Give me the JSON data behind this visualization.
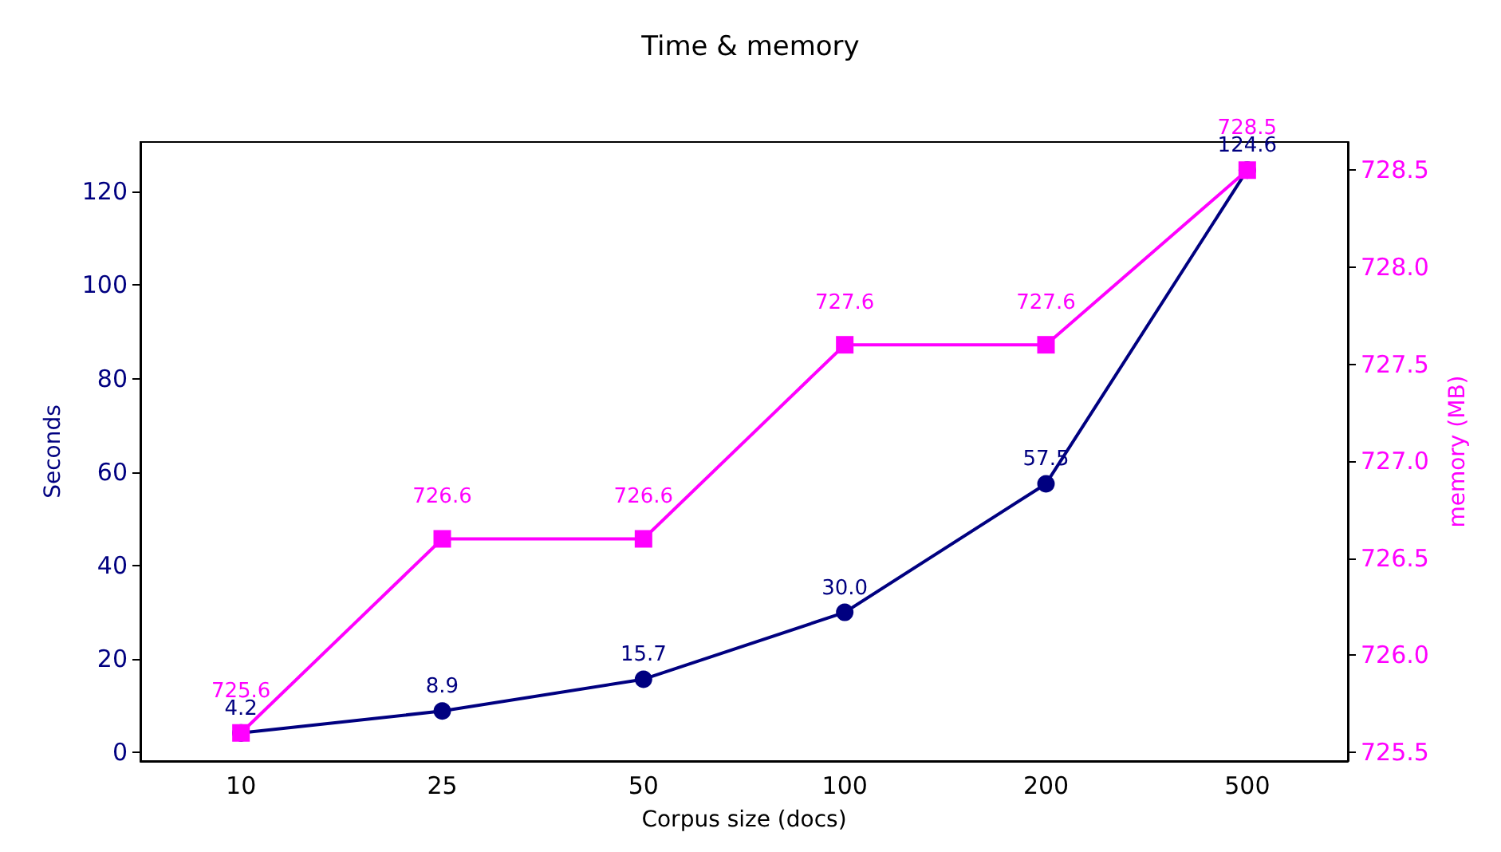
{
  "chart_data": {
    "type": "line",
    "title": "Time & memory",
    "xlabel": "Corpus size (docs)",
    "ylabel": "Seconds",
    "y2label": "memory (MB)",
    "categories": [
      "10",
      "25",
      "50",
      "100",
      "200",
      "500"
    ],
    "series": [
      {
        "color": "#000080",
        "marker": "circle",
        "values": [
          4.2,
          8.9,
          15.7,
          30.0,
          57.5,
          124.6
        ],
        "value_labels": [
          "4.2",
          "8.9",
          "15.7",
          "30.0",
          "57.5",
          "124.6"
        ]
      },
      {
        "color": "#ff00ff",
        "marker": "square",
        "axis": "y2",
        "values": [
          725.6,
          726.6,
          726.6,
          727.6,
          727.6,
          728.5
        ],
        "value_labels": [
          "725.6",
          "726.6",
          "726.6",
          "727.6",
          "727.6",
          "728.5"
        ]
      }
    ],
    "ylim": [
      -1.8,
      130.6
    ],
    "yticks": [
      0,
      20,
      40,
      60,
      80,
      100,
      120
    ],
    "y2lim": [
      725.455,
      728.645
    ],
    "y2ticks": [
      725.5,
      {
        "value": 726,
        "label": "726.0"
      },
      726.5,
      {
        "value": 727,
        "label": "727.0"
      },
      727.5,
      {
        "value": 728,
        "label": "728.0"
      },
      728.5
    ],
    "grid": false
  }
}
